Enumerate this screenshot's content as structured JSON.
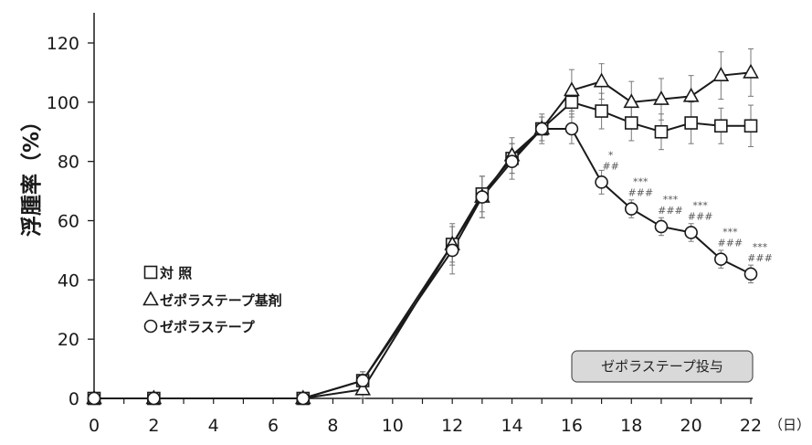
{
  "chart_data": {
    "type": "line",
    "ylabel": "浮腫率（%）",
    "x_unit_label": "（日）",
    "xlim": [
      0,
      22
    ],
    "ylim": [
      0,
      120
    ],
    "x_ticks": [
      "0",
      "2",
      "4",
      "6",
      "8",
      "10",
      "12",
      "14",
      "16",
      "18",
      "20",
      "22"
    ],
    "y_ticks": [
      "0",
      "20",
      "40",
      "60",
      "80",
      "100",
      "120"
    ],
    "series": [
      {
        "name": "対 照",
        "marker": "square",
        "x": [
          0,
          2,
          7,
          9,
          12,
          13,
          14,
          15,
          16,
          17,
          18,
          19,
          20,
          21,
          22
        ],
        "y": [
          0,
          0,
          0,
          6,
          52,
          69,
          81,
          91,
          100,
          97,
          93,
          90,
          93,
          92,
          92
        ],
        "err": [
          0,
          0,
          0,
          3,
          6,
          6,
          5,
          4,
          5,
          6,
          6,
          6,
          7,
          6,
          7
        ]
      },
      {
        "name": "ゼポラステープ基剤",
        "marker": "triangle",
        "x": [
          0,
          2,
          7,
          9,
          12,
          13,
          14,
          15,
          16,
          17,
          18,
          19,
          20,
          21,
          22
        ],
        "y": [
          0,
          0,
          0,
          3,
          52,
          68,
          82,
          91,
          104,
          107,
          100,
          101,
          102,
          109,
          110
        ],
        "err": [
          0,
          0,
          0,
          3,
          7,
          7,
          6,
          5,
          7,
          6,
          7,
          7,
          7,
          8,
          8
        ]
      },
      {
        "name": "ゼポラステープ",
        "marker": "circle",
        "x": [
          0,
          2,
          7,
          9,
          12,
          13,
          14,
          15,
          16,
          17,
          18,
          19,
          20,
          21,
          22
        ],
        "y": [
          0,
          0,
          0,
          6,
          50,
          68,
          80,
          91,
          91,
          73,
          64,
          58,
          56,
          47,
          42
        ],
        "err": [
          0,
          0,
          0,
          3,
          8,
          7,
          6,
          4,
          5,
          4,
          3,
          3,
          3,
          3,
          3
        ]
      }
    ],
    "significance": [
      {
        "x": 17,
        "y": 73,
        "top": "*",
        "bottom": "##"
      },
      {
        "x": 18,
        "y": 64,
        "top": "***",
        "bottom": "###"
      },
      {
        "x": 19,
        "y": 58,
        "top": "***",
        "bottom": "###"
      },
      {
        "x": 20,
        "y": 56,
        "top": "***",
        "bottom": "###"
      },
      {
        "x": 21,
        "y": 47,
        "top": "***",
        "bottom": "###"
      },
      {
        "x": 22,
        "y": 42,
        "top": "***",
        "bottom": "###"
      }
    ],
    "annotation_box": "ゼポラステープ投与",
    "legend_placement": "middle-left",
    "grid": false
  },
  "colors": {
    "line": "#1a1a1a",
    "error_bar": "#777777",
    "box_fill": "#d9d9d9",
    "box_stroke": "#555555",
    "significance_text": "#555555"
  }
}
